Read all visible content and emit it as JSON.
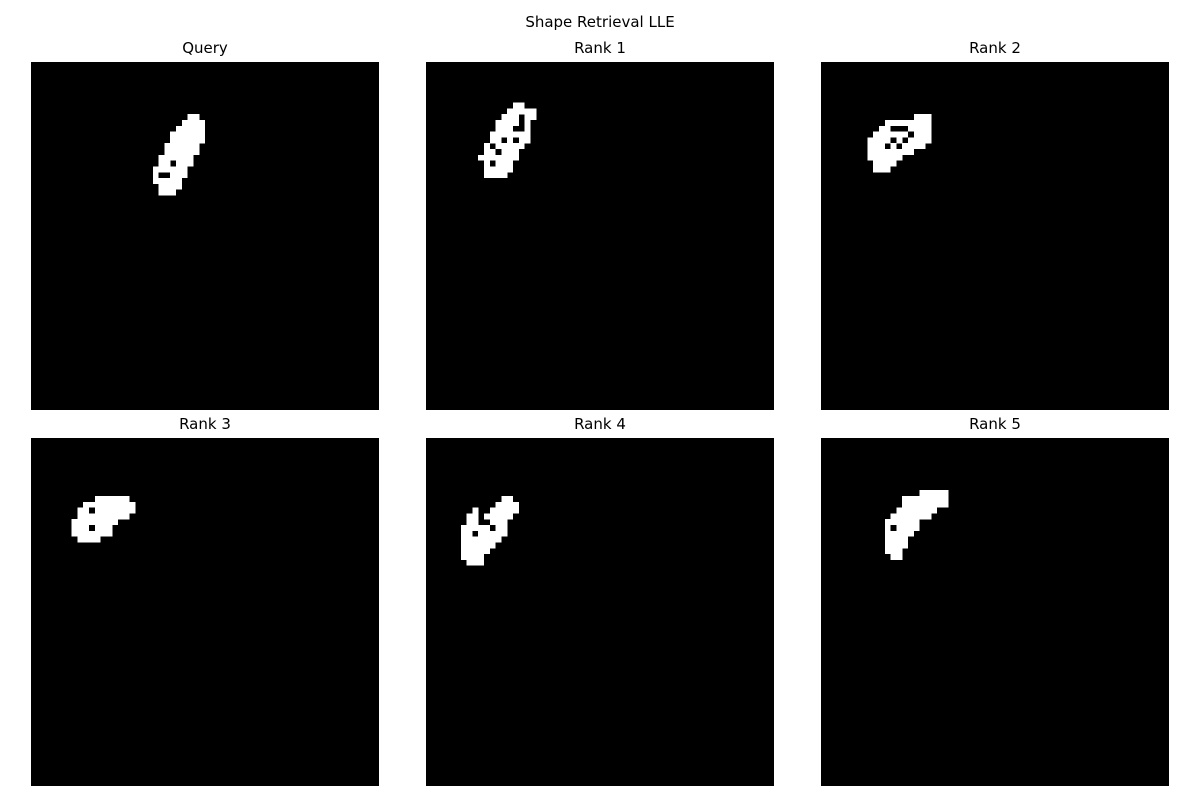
{
  "figure": {
    "title": "Shape Retrieval LLE",
    "panels": [
      {
        "title": "Query",
        "rows": [
          "",
          "",
          "",
          "",
          "",
          "",
          "",
          "",
          "",
          "",
          "",
          "",
          "",
          "",
          "",
          "",
          "",
          "",
          "",
          "",
          "",
          "",
          "",
          "",
          "",
          "",
          "",
          "",
          "",
          "",
          "",
          "",
          "",
          "",
          "",
          "",
          "",
          "",
          "",
          "",
          "",
          "",
          "",
          "",
          "",
          "",
          "",
          "",
          "",
          "",
          "",
          "",
          "",
          "",
          "",
          "",
          "",
          "",
          "",
          "",
          ""
        ]
      },
      {
        "title": "Rank 1"
      },
      {
        "title": "Rank 2"
      },
      {
        "title": "Rank 3"
      },
      {
        "title": "Rank 4"
      },
      {
        "title": "Rank 5"
      }
    ]
  },
  "shapes": [
    [
      "...........................##",
      "..........................####",
      ".........................#####",
      "........................######",
      "........................######",
      ".......................######",
      ".......................######",
      "......................######",
      "......................##.###",
      ".....................######",
      ".....................#..###",
      ".....................#####",
      "......................####",
      "......................###"
    ],
    [
      "................##",
      "...............#####",
      "..............###.##",
      ".............####.#",
      ".............###..#",
      "............#######",
      "............##.#.##",
      "...........#.#####",
      "...........##.###",
      "..........#######",
      "...........#.###",
      "...........#####",
      "...........####"
    ],
    [
      ".................###",
      "............########",
      "...........##...####",
      "..........######.###",
      ".........####.#.####",
      ".........###.#.####",
      ".........########",
      ".........######",
      "..........####",
      "..........###"
    ],
    [
      "..............######",
      "............#########",
      "...........##.#######",
      "...........#########",
      "..........########",
      "..........###.###",
      "..........#######",
      "...........####"
    ],
    [
      "...............##",
      "..............####",
      "..........#..#####",
      ".........##.#####",
      ".........##..###",
      "........#####.##",
      "........##.#####",
      "........#######",
      "........######",
      "........#####",
      "........####",
      ".........###"
    ],
    [
      "..................#####",
      "...............########",
      "...............########",
      "..............#######",
      ".............#######",
      "............######",
      "............#.####",
      "............#####",
      "............####",
      "............####",
      "............###",
      ".............##"
    ]
  ],
  "shape_offsets": [
    [
      9,
      14
    ],
    [
      7,
      13
    ],
    [
      9,
      13
    ],
    [
      10,
      11
    ],
    [
      10,
      12
    ],
    [
      9,
      13
    ]
  ]
}
